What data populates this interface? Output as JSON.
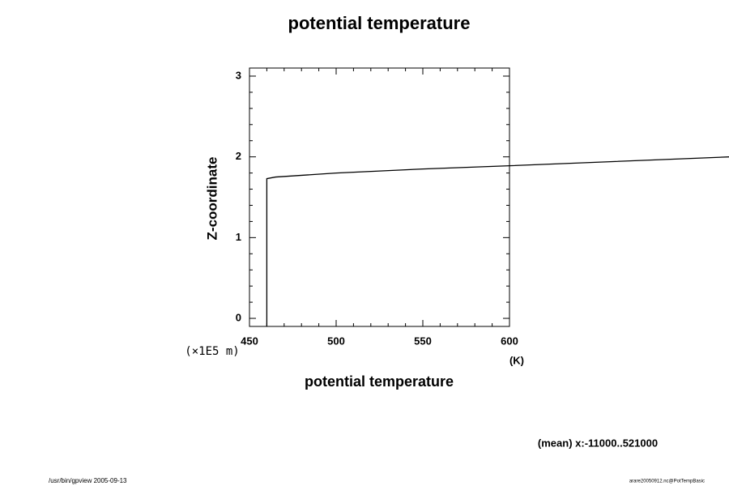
{
  "chart_data": {
    "type": "line",
    "title": "potential temperature",
    "xlabel": "potential temperature",
    "xunit": "(K)",
    "ylabel": "Z-coordinate",
    "yunit": "(×1E5 m)",
    "annotation": "(mean) x:-11000..521000",
    "footer_left": "/usr/bin/gpview 2005-09-13",
    "footer_right": "arare20050912.nc@PotTempBasic",
    "xlim": [
      450,
      600
    ],
    "ylim": [
      -0.1,
      3.1
    ],
    "xticks": [
      450,
      500,
      550,
      600
    ],
    "yticks": [
      0,
      1,
      2,
      3
    ],
    "xminor_ticks": [
      460,
      470,
      480,
      490,
      510,
      520,
      530,
      540,
      560,
      570,
      580,
      590
    ],
    "yminor_ticks": [
      0.2,
      0.4,
      0.6,
      0.8,
      1.2,
      1.4,
      1.6,
      1.8,
      2.2,
      2.4,
      2.6,
      2.8
    ],
    "series": [
      {
        "color": "#000000",
        "x": [
          460,
          460,
          465,
          500,
          550,
          600,
          727
        ],
        "values": [
          -0.1,
          1.73,
          1.75,
          1.8,
          1.85,
          1.89,
          2.0
        ]
      }
    ]
  }
}
